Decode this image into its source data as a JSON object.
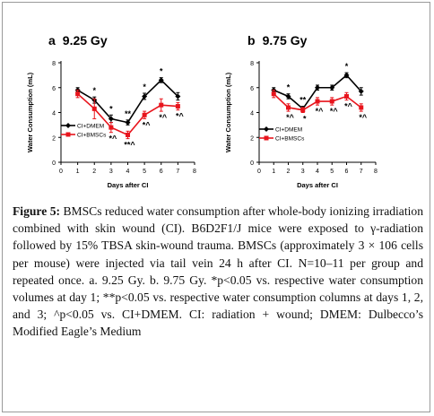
{
  "caption": {
    "label": "Figure 5:",
    "text": "BMSCs reduced water consumption after whole-body ionizing irradiation combined with skin wound (CI). B6D2F1/J mice were exposed to γ-radiation followed by 15% TBSA skin-wound trauma. BMSCs (approximately 3 × 106 cells per mouse) were injected via tail vein 24 h after CI. N=10–11 per group and repeated once. a. 9.25 Gy. b. 9.75 Gy. *p<0.05 vs. respective water consumption volumes at day 1; **p<0.05 vs. respective water consumption columns at days 1, 2, and 3; ^p<0.05 vs. CI+DMEM. CI: radiation + wound; DMEM: Dulbecco’s Modified Eagle’s Medium"
  },
  "shared": {
    "xlabel": "Days after CI",
    "ylabel": "Water Consumption (mL)"
  },
  "colors": {
    "dmem": "#000000",
    "bmsc": "#e8141c"
  },
  "chart_data": [
    {
      "type": "line",
      "panel": "a",
      "title": "9.25 Gy",
      "xlim": [
        0,
        8
      ],
      "ylim": [
        0,
        8
      ],
      "xticks": [
        0,
        1,
        2,
        3,
        4,
        5,
        6,
        7,
        8
      ],
      "yticks": [
        0,
        2,
        4,
        6,
        8
      ],
      "legend_position": "bottom-left",
      "series": [
        {
          "name": "CI+DMEM",
          "color": "#000000",
          "marker": "diamond",
          "x": [
            1,
            2,
            3,
            4,
            5,
            6,
            7
          ],
          "y": [
            5.8,
            5.0,
            3.5,
            3.2,
            5.3,
            6.6,
            5.3
          ],
          "err": [
            0.2,
            0.25,
            0.3,
            0.2,
            0.25,
            0.2,
            0.3
          ],
          "labels": [
            "",
            "*",
            "*",
            "**",
            "*",
            "*",
            ""
          ]
        },
        {
          "name": "CI+BMSCs",
          "color": "#e8141c",
          "marker": "square",
          "x": [
            1,
            2,
            3,
            4,
            5,
            6,
            7
          ],
          "y": [
            5.5,
            4.3,
            2.8,
            2.2,
            3.8,
            4.6,
            4.5
          ],
          "err": [
            0.3,
            0.8,
            0.4,
            0.3,
            0.3,
            0.5,
            0.3
          ],
          "labels": [
            "",
            "",
            "*^",
            "**^",
            "*^",
            "*^",
            "*^"
          ]
        }
      ]
    },
    {
      "type": "line",
      "panel": "b",
      "title": "9.75 Gy",
      "xlim": [
        0,
        8
      ],
      "ylim": [
        0,
        8
      ],
      "xticks": [
        0,
        1,
        2,
        3,
        4,
        5,
        6,
        7,
        8
      ],
      "yticks": [
        0,
        2,
        4,
        6,
        8
      ],
      "legend_position": "bottom-left",
      "series": [
        {
          "name": "CI+DMEM",
          "color": "#000000",
          "marker": "diamond",
          "x": [
            1,
            2,
            3,
            4,
            5,
            6,
            7
          ],
          "y": [
            5.8,
            5.3,
            4.3,
            6.0,
            6.0,
            7.0,
            5.7
          ],
          "err": [
            0.2,
            0.2,
            0.2,
            0.2,
            0.2,
            0.2,
            0.3
          ],
          "labels": [
            "",
            "*",
            "**",
            "",
            "",
            "*",
            ""
          ]
        },
        {
          "name": "CI+BMSCs",
          "color": "#e8141c",
          "marker": "square",
          "x": [
            1,
            2,
            3,
            4,
            5,
            6,
            7
          ],
          "y": [
            5.5,
            4.4,
            4.2,
            4.9,
            4.9,
            5.3,
            4.4
          ],
          "err": [
            0.3,
            0.3,
            0.2,
            0.3,
            0.3,
            0.3,
            0.3
          ],
          "labels": [
            "",
            "*^",
            "*",
            "*^",
            "*^",
            "*^",
            "*^"
          ]
        }
      ]
    }
  ]
}
